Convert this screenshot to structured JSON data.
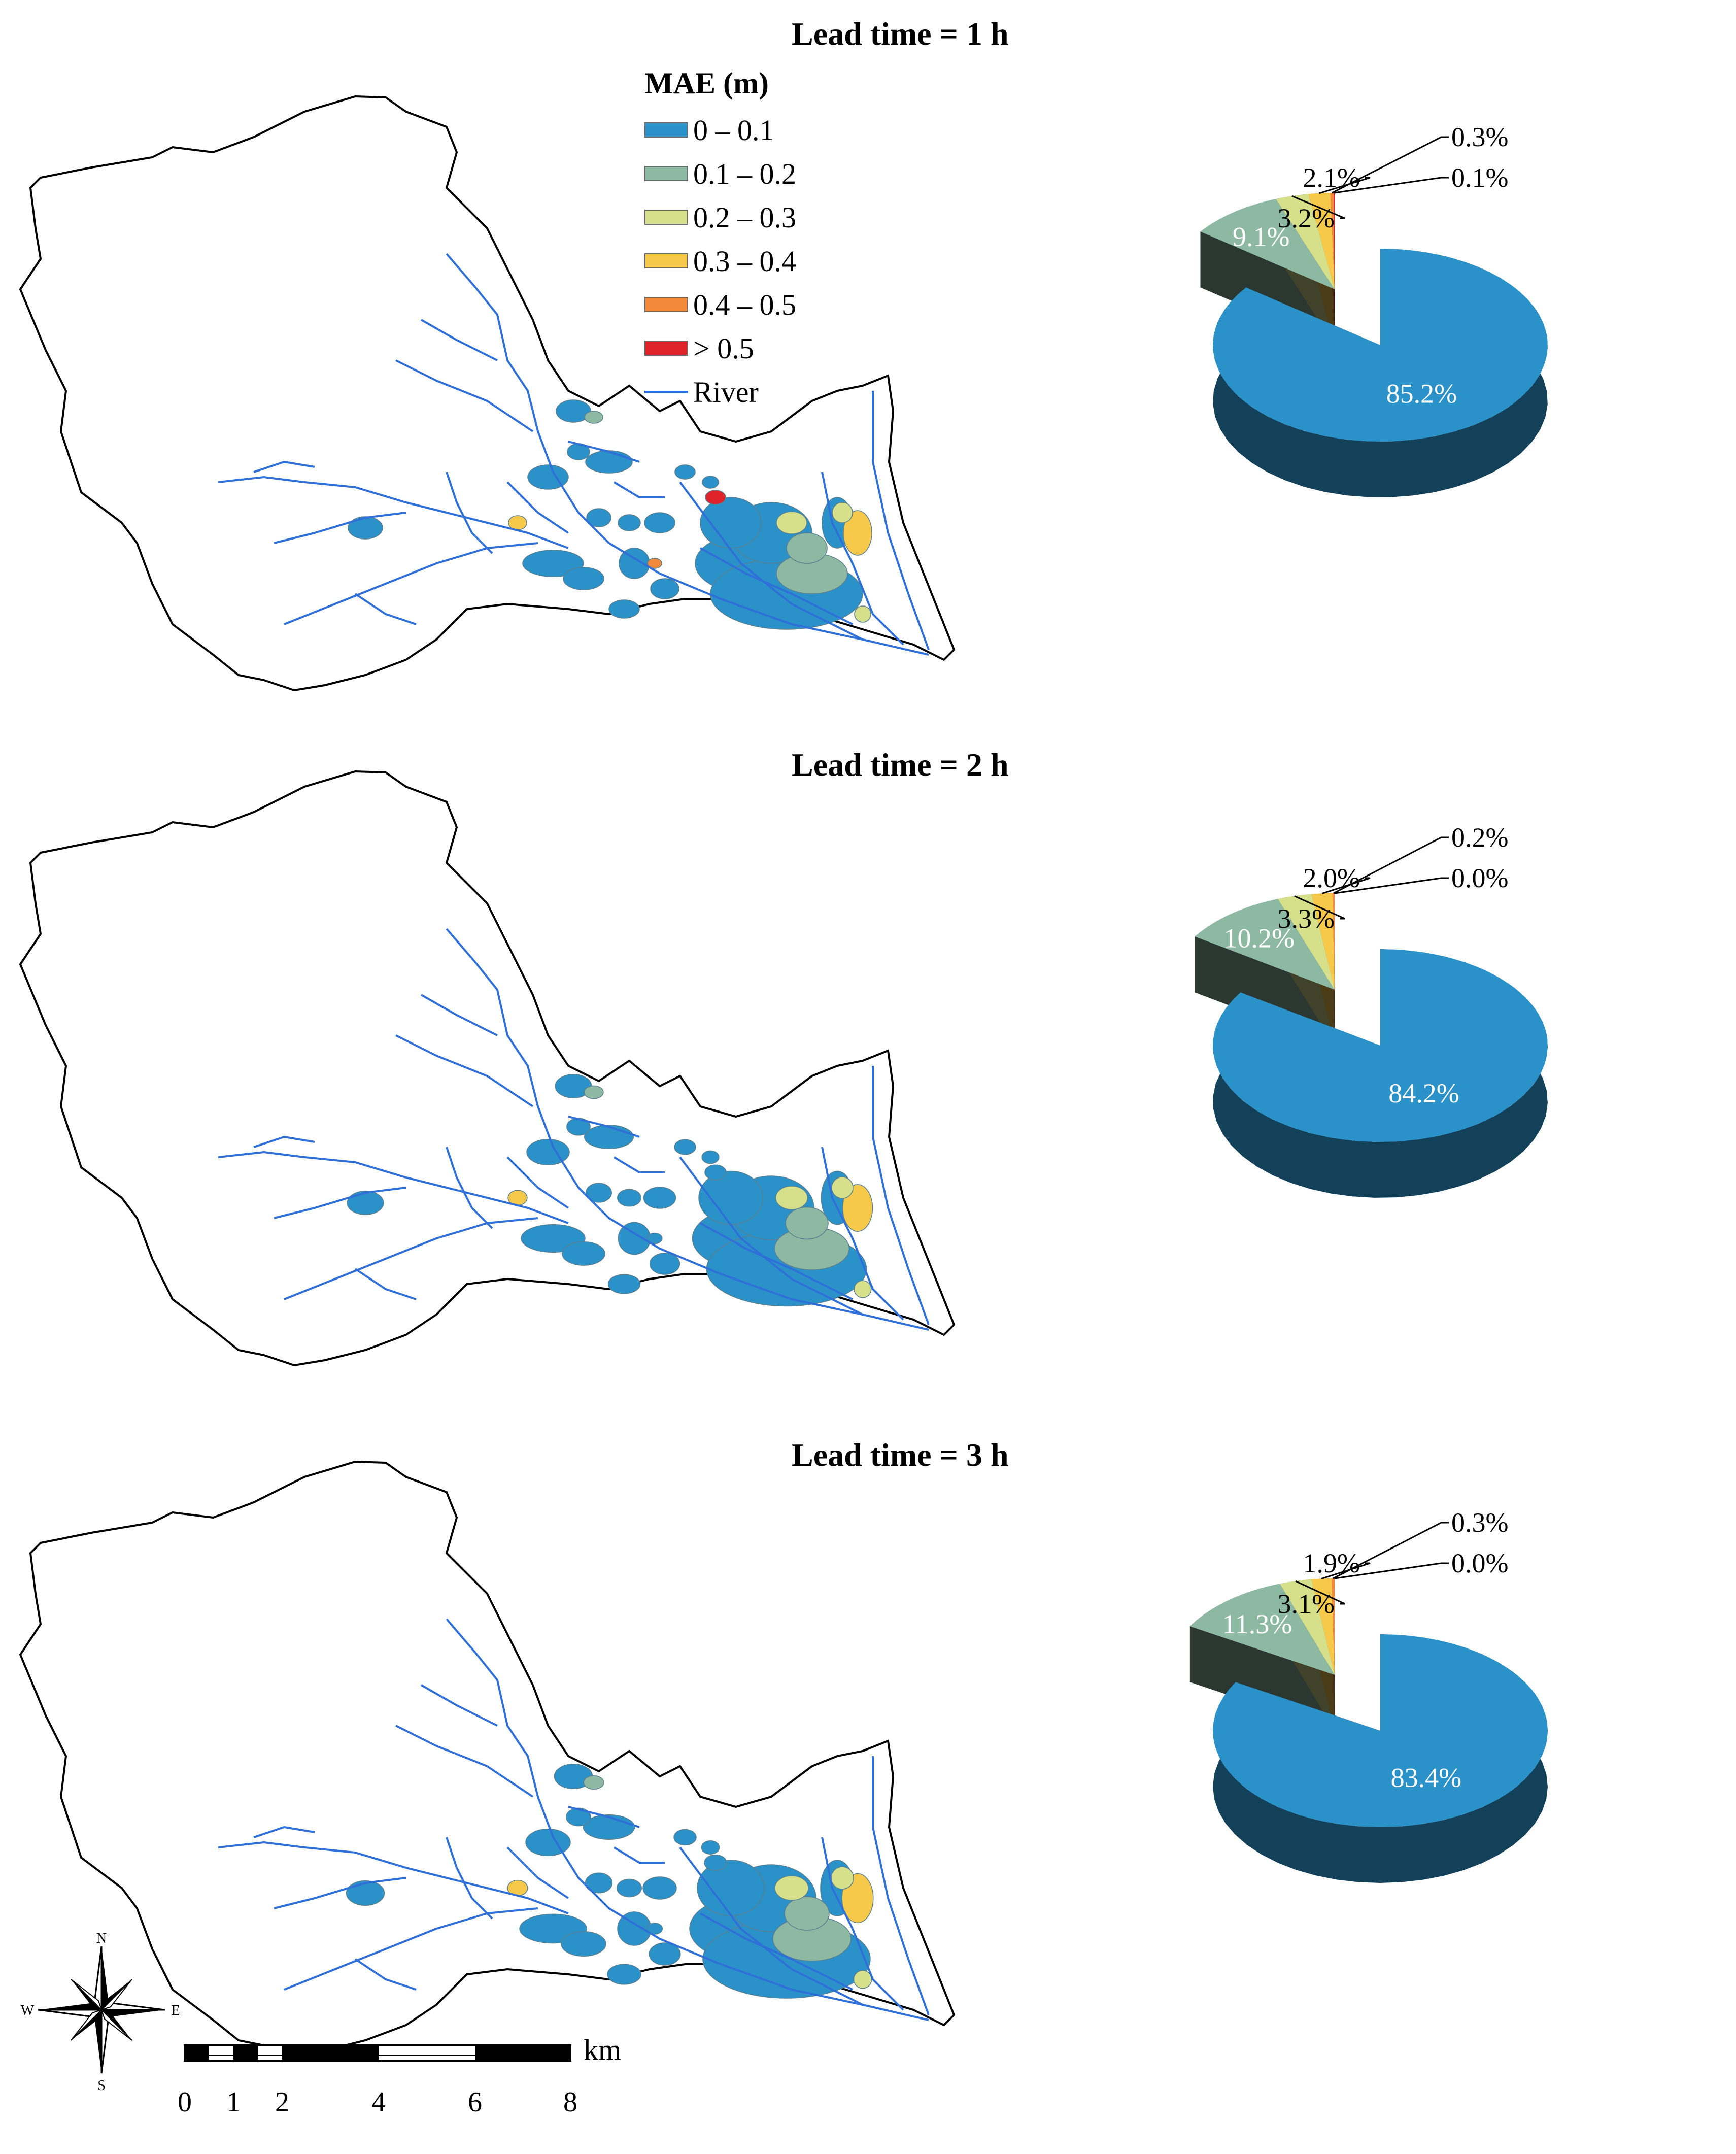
{
  "legend": {
    "title": "MAE (m)",
    "items": [
      {
        "label": "0 – 0.1",
        "color": "#2b91c9"
      },
      {
        "label": "0.1 – 0.2",
        "color": "#8db9a3"
      },
      {
        "label": "0.2 – 0.3",
        "color": "#d6e08a"
      },
      {
        "label": "0.3 – 0.4",
        "color": "#f6c94a"
      },
      {
        "label": "0.4 – 0.5",
        "color": "#f08a3a"
      },
      {
        "label": "> 0.5",
        "color": "#e0232a"
      }
    ],
    "river_label": "River",
    "river_color": "#2f6fd8"
  },
  "panels": [
    {
      "title": "Lead time = 1 h",
      "chart_data": {
        "type": "pie",
        "categories": [
          "0 – 0.1",
          "0.1 – 0.2",
          "0.2 – 0.3",
          "0.3 – 0.4",
          "0.4 – 0.5",
          "> 0.5"
        ],
        "values": [
          85.2,
          9.1,
          3.2,
          2.1,
          0.3,
          0.1
        ],
        "labels": [
          "85.2%",
          "9.1%",
          "3.2%",
          "2.1%",
          "0.3%",
          "0.1%"
        ]
      }
    },
    {
      "title": "Lead time = 2 h",
      "chart_data": {
        "type": "pie",
        "categories": [
          "0 – 0.1",
          "0.1 – 0.2",
          "0.2 – 0.3",
          "0.3 – 0.4",
          "0.4 – 0.5",
          "> 0.5"
        ],
        "values": [
          84.2,
          10.2,
          3.3,
          2.0,
          0.2,
          0.0
        ],
        "labels": [
          "84.2%",
          "10.2%",
          "3.3%",
          "2.0%",
          "0.2%",
          "0.0%"
        ]
      }
    },
    {
      "title": "Lead time = 3 h",
      "chart_data": {
        "type": "pie",
        "categories": [
          "0 – 0.1",
          "0.1 – 0.2",
          "0.2 – 0.3",
          "0.3 – 0.4",
          "0.4 – 0.5",
          "> 0.5"
        ],
        "values": [
          83.4,
          11.3,
          3.1,
          1.9,
          0.3,
          0.0
        ],
        "labels": [
          "83.4%",
          "11.3%",
          "3.1%",
          "1.9%",
          "0.3%",
          "0.0%"
        ]
      }
    }
  ],
  "compass": {
    "n": "N",
    "s": "S",
    "e": "E",
    "w": "W"
  },
  "scale": {
    "unit": "km",
    "ticks": [
      "0",
      "1",
      "2",
      "4",
      "6",
      "8"
    ]
  }
}
